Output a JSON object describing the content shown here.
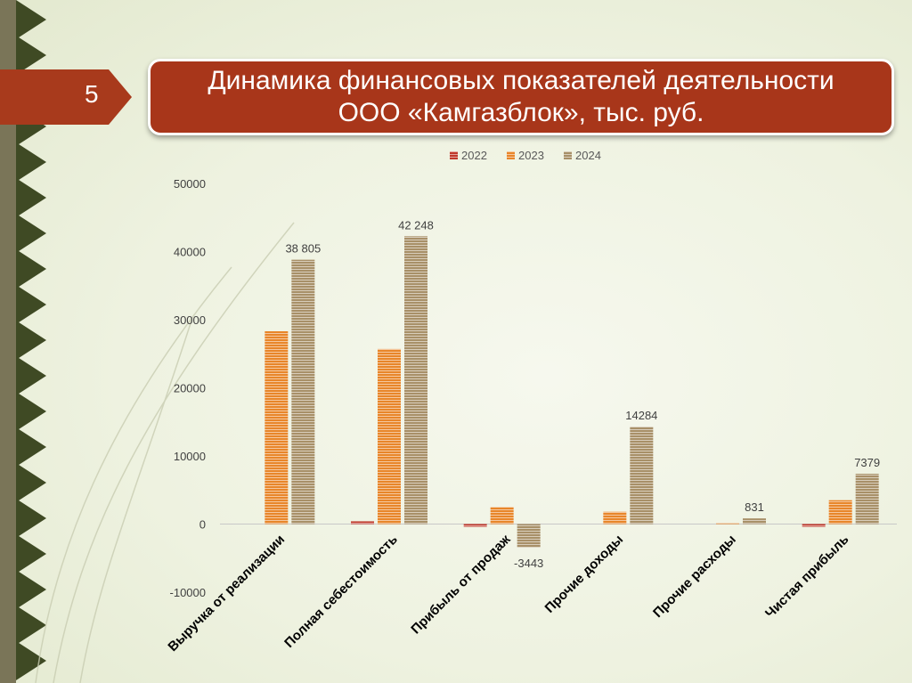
{
  "slide": {
    "number": "5",
    "title_line1": "Динамика финансовых показателей деятельности",
    "title_line2": "ООО «Камгазблок», тыс. руб."
  },
  "colors": {
    "accent": "#a8361a",
    "series_2022": "#c0392b",
    "series_2023": "#e8862a",
    "series_2024": "#a89068"
  },
  "chart_data": {
    "type": "bar",
    "categories": [
      "Выручка от реализации",
      "Полная себестоимость",
      "Прибыль от продаж",
      "Прочие доходы",
      "Прочие расходы",
      "Чистая прибыль"
    ],
    "series": [
      {
        "name": "2022",
        "values": [
          0,
          400,
          -400,
          0,
          0,
          -400
        ]
      },
      {
        "name": "2023",
        "values": [
          28300,
          25700,
          2500,
          1800,
          150,
          3500
        ]
      },
      {
        "name": "2024",
        "values": [
          38805,
          42248,
          -3443,
          14284,
          831,
          7379
        ]
      }
    ],
    "data_labels": [
      {
        "category_index": 0,
        "series_index": 2,
        "text": "38 805"
      },
      {
        "category_index": 1,
        "series_index": 2,
        "text": "42 248"
      },
      {
        "category_index": 2,
        "series_index": 2,
        "text": "-3443"
      },
      {
        "category_index": 3,
        "series_index": 2,
        "text": "14284"
      },
      {
        "category_index": 4,
        "series_index": 2,
        "text": "831"
      },
      {
        "category_index": 5,
        "series_index": 2,
        "text": "7379"
      }
    ],
    "y_ticks": [
      "50000",
      "40000",
      "30000",
      "20000",
      "10000",
      "0",
      "-10000"
    ],
    "ylim": [
      -10000,
      50000
    ],
    "legend_position": "top",
    "grid": false,
    "title": "",
    "xlabel": "",
    "ylabel": ""
  }
}
